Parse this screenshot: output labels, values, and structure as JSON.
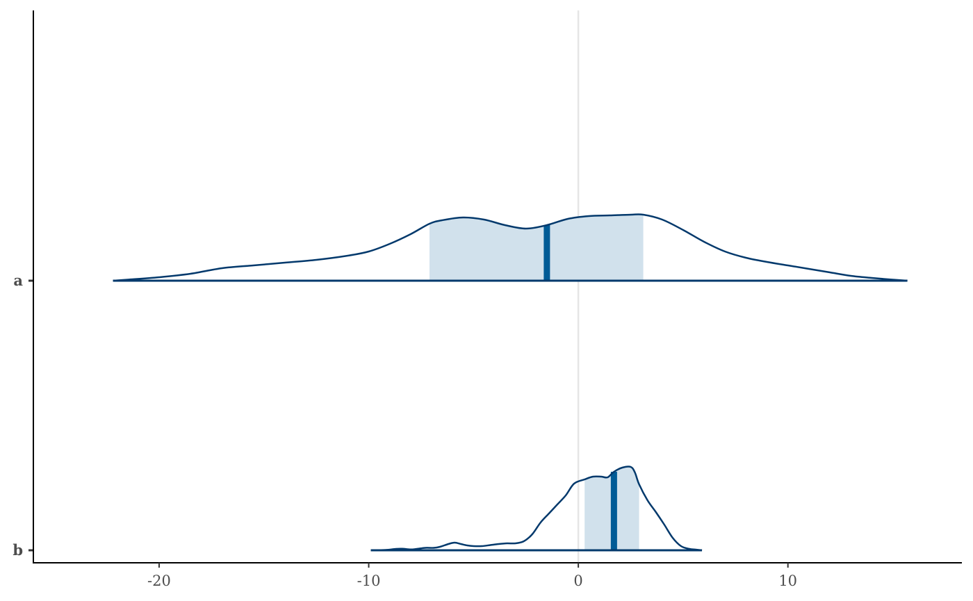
{
  "chart_data": {
    "type": "area",
    "subtype": "posterior-density-areas",
    "title": "",
    "xlabel": "",
    "ylabel": "",
    "xlim": [
      -26,
      18.3
    ],
    "x_ticks": [
      -20,
      -10,
      0,
      10
    ],
    "x_tick_labels": [
      "-20",
      "-10",
      "0",
      "10"
    ],
    "reference_line_x": 0,
    "grid": false,
    "legend": "none",
    "colors": {
      "line": "#03396c",
      "fill": "#d1e1ec",
      "median": "#005b96",
      "reference": "#e5e5e5",
      "axis": "#000000"
    },
    "series": [
      {
        "category": "a",
        "range": [
          -22.2,
          15.7
        ],
        "interval": [
          -7.1,
          3.1
        ],
        "median": -1.5,
        "density_x": [
          -22.2,
          -21.5,
          -20.0,
          -18.5,
          -17.0,
          -15.5,
          -14.0,
          -12.5,
          -11.0,
          -10.0,
          -9.0,
          -8.0,
          -7.1,
          -6.5,
          -5.5,
          -4.5,
          -3.5,
          -2.5,
          -1.5,
          -0.5,
          0.5,
          1.5,
          2.5,
          3.1,
          4.0,
          5.0,
          6.0,
          7.0,
          8.0,
          9.0,
          10.0,
          11.0,
          12.0,
          13.0,
          14.0,
          15.0,
          15.7
        ],
        "density_y": [
          0.0,
          0.015,
          0.05,
          0.1,
          0.18,
          0.22,
          0.26,
          0.3,
          0.36,
          0.42,
          0.53,
          0.67,
          0.82,
          0.87,
          0.91,
          0.88,
          0.8,
          0.75,
          0.8,
          0.89,
          0.93,
          0.94,
          0.95,
          0.95,
          0.88,
          0.73,
          0.56,
          0.42,
          0.33,
          0.27,
          0.22,
          0.17,
          0.12,
          0.07,
          0.04,
          0.015,
          0.0
        ]
      },
      {
        "category": "b",
        "range": [
          -9.9,
          5.9
        ],
        "interval": [
          0.3,
          2.9
        ],
        "median": 1.7,
        "density_x": [
          -9.9,
          -9.2,
          -8.7,
          -8.4,
          -8.0,
          -7.7,
          -7.3,
          -6.9,
          -6.6,
          -6.2,
          -5.9,
          -5.6,
          -5.3,
          -5.0,
          -4.6,
          -4.2,
          -3.8,
          -3.4,
          -3.0,
          -2.6,
          -2.2,
          -1.8,
          -1.4,
          -1.0,
          -0.6,
          -0.2,
          0.3,
          0.7,
          1.1,
          1.4,
          1.7,
          2.1,
          2.5,
          2.7,
          2.9,
          3.3,
          3.7,
          4.1,
          4.5,
          4.9,
          5.3,
          5.6,
          5.9
        ],
        "density_y": [
          0.0,
          0.005,
          0.02,
          0.022,
          0.012,
          0.02,
          0.035,
          0.035,
          0.05,
          0.09,
          0.11,
          0.09,
          0.07,
          0.06,
          0.06,
          0.075,
          0.09,
          0.1,
          0.1,
          0.13,
          0.23,
          0.4,
          0.53,
          0.66,
          0.79,
          0.96,
          1.02,
          1.06,
          1.06,
          1.05,
          1.13,
          1.19,
          1.2,
          1.12,
          0.95,
          0.72,
          0.55,
          0.37,
          0.18,
          0.06,
          0.02,
          0.01,
          0.0
        ]
      }
    ]
  }
}
